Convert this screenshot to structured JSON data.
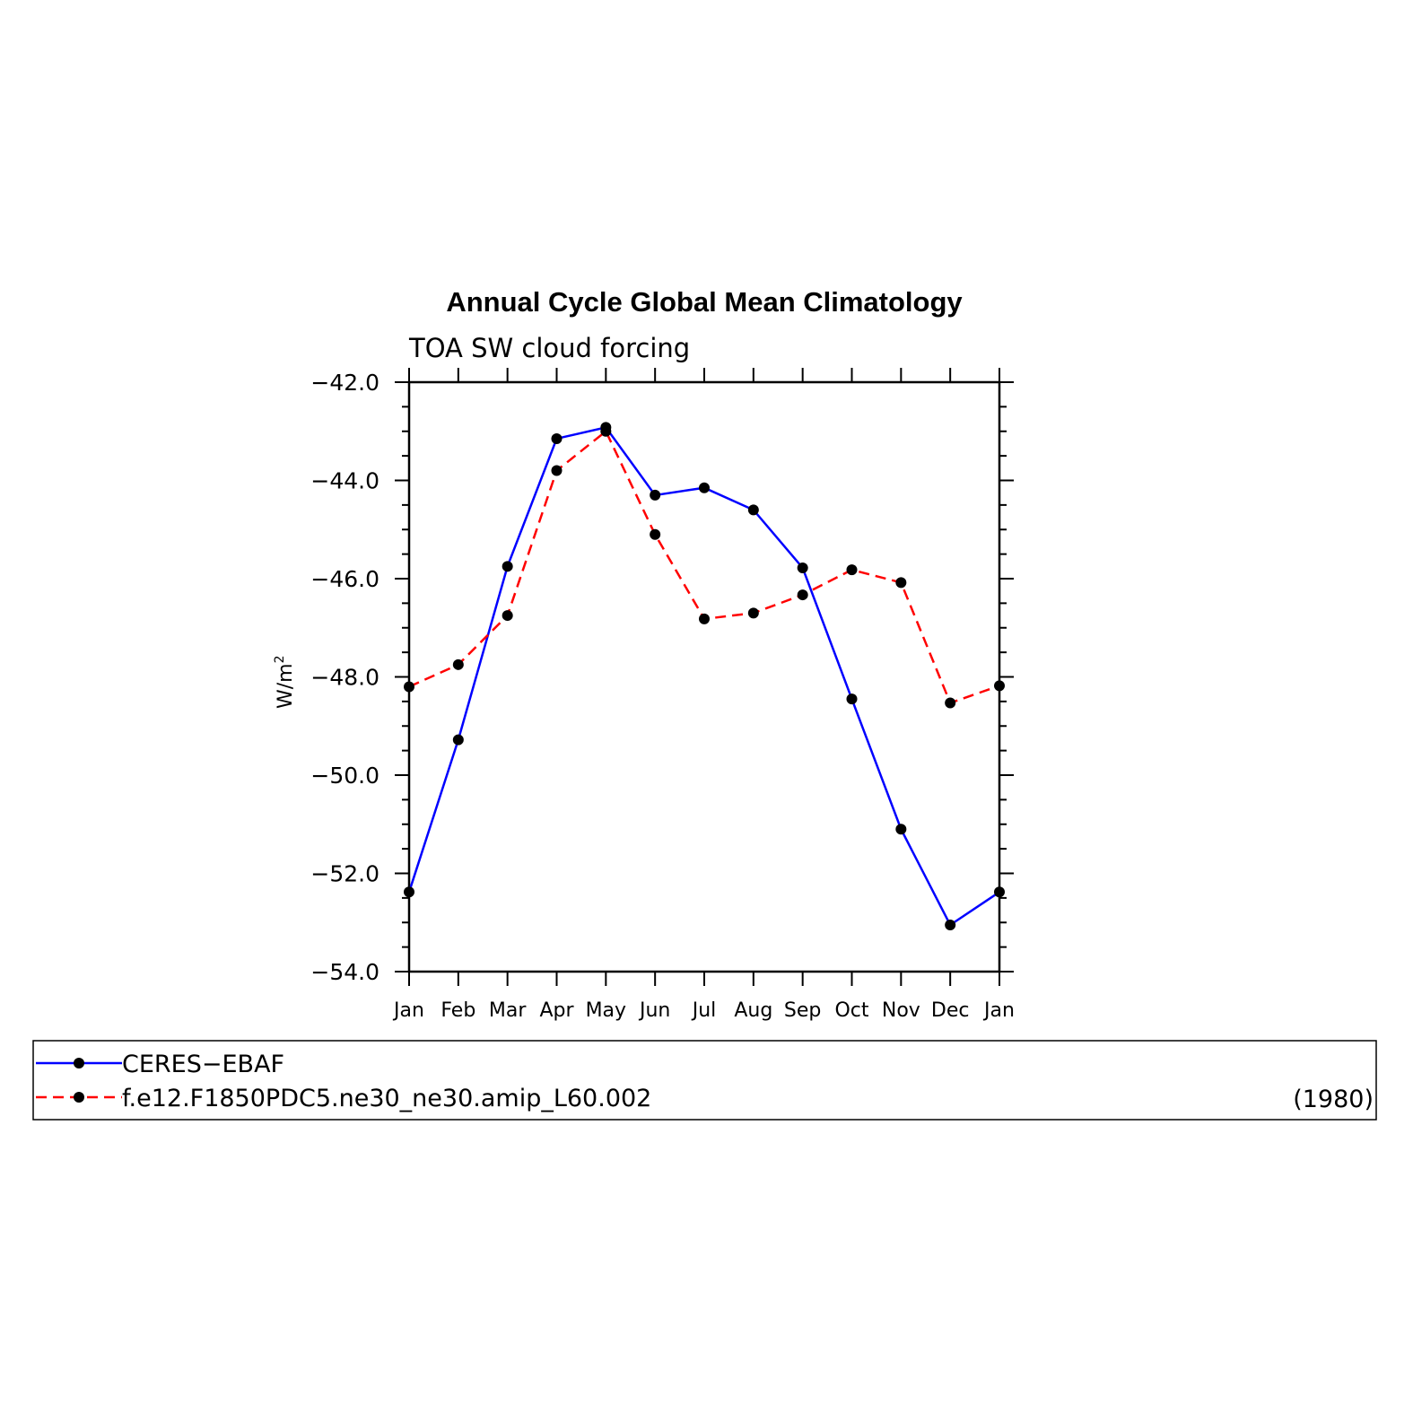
{
  "chart_data": {
    "type": "line",
    "title": "Annual Cycle Global Mean Climatology",
    "subtitle": "TOA SW cloud forcing",
    "ylabel": "W/m",
    "ylabel_superscript": "2",
    "xlabel": "",
    "categories": [
      "Jan",
      "Feb",
      "Mar",
      "Apr",
      "May",
      "Jun",
      "Jul",
      "Aug",
      "Sep",
      "Oct",
      "Nov",
      "Dec",
      "Jan"
    ],
    "ylim": [
      -54.0,
      -42.0
    ],
    "yticks": [
      -54.0,
      -52.0,
      -50.0,
      -48.0,
      -46.0,
      -44.0,
      -42.0
    ],
    "ytick_labels": [
      "−54.0",
      "−52.0",
      "−50.0",
      "−48.0",
      "−46.0",
      "−44.0",
      "−42.0"
    ],
    "grid": false,
    "legend_position": "bottom",
    "series": [
      {
        "name": "CERES−EBAF",
        "color": "#0000ff",
        "style": "solid",
        "marker": "filled-circle",
        "values": [
          -52.38,
          -49.28,
          -45.75,
          -43.15,
          -42.92,
          -44.3,
          -44.15,
          -44.6,
          -45.78,
          -48.45,
          -51.1,
          -53.05,
          -52.38
        ]
      },
      {
        "name": "f.e12.F1850PDC5.ne30_ne30.amip_L60.002",
        "color": "#ff0000",
        "style": "dashed",
        "marker": "filled-circle",
        "values": [
          -48.2,
          -47.75,
          -46.75,
          -43.8,
          -43.0,
          -45.1,
          -46.82,
          -46.7,
          -46.33,
          -45.82,
          -46.08,
          -48.53,
          -48.18
        ]
      }
    ],
    "legend_note": "(1980)"
  }
}
